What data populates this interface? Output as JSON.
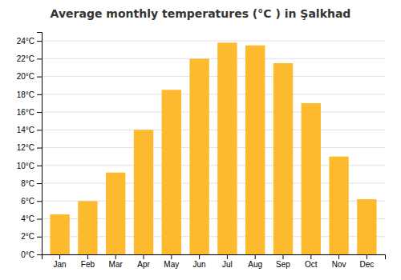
{
  "chart_data": {
    "type": "bar",
    "title": "Average monthly temperatures (°C ) in Şalkhad",
    "categories": [
      "Jan",
      "Feb",
      "Mar",
      "Apr",
      "May",
      "Jun",
      "Jul",
      "Aug",
      "Sep",
      "Oct",
      "Nov",
      "Dec"
    ],
    "values": [
      4.5,
      6.0,
      9.2,
      14.0,
      18.5,
      22.0,
      23.8,
      23.5,
      21.5,
      17.0,
      11.0,
      6.2
    ],
    "color": "#FDBA2E",
    "ylim": [
      0,
      25
    ],
    "yticks": [
      {
        "value": 0,
        "label": "0°C"
      },
      {
        "value": 2,
        "label": "2°C"
      },
      {
        "value": 4,
        "label": "4°C"
      },
      {
        "value": 6,
        "label": "6°C"
      },
      {
        "value": 8,
        "label": "8°C"
      },
      {
        "value": 10,
        "label": "10°C"
      },
      {
        "value": 12,
        "label": "12°C"
      },
      {
        "value": 14,
        "label": "14°C"
      },
      {
        "value": 16,
        "label": "16°C"
      },
      {
        "value": 18,
        "label": "18°C"
      },
      {
        "value": 20,
        "label": "20°C"
      },
      {
        "value": 22,
        "label": "22°C"
      },
      {
        "value": 24,
        "label": "24°C"
      }
    ],
    "grid": true
  }
}
